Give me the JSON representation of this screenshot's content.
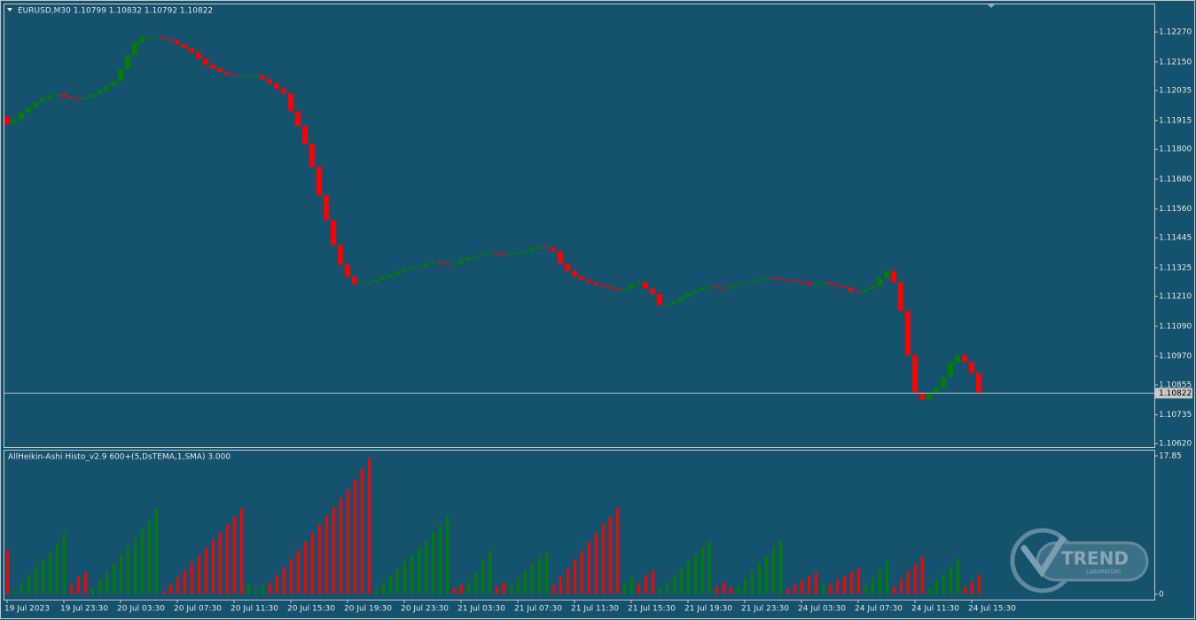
{
  "chart_data": [
    {
      "type": "candlestick",
      "title": "EURUSD,M30  1.10799 1.10832 1.10792 1.10822",
      "first_open": 1.1193,
      "close": [
        1.119,
        1.11921,
        1.11946,
        1.11968,
        1.11989,
        1.12003,
        1.12017,
        1.12021,
        1.1201,
        1.12003,
        1.12,
        1.12007,
        1.12021,
        1.12035,
        1.12053,
        1.12071,
        1.12121,
        1.12178,
        1.12227,
        1.12249,
        1.12249,
        1.12249,
        1.12242,
        1.12235,
        1.1222,
        1.12206,
        1.12188,
        1.12163,
        1.12138,
        1.12124,
        1.1211,
        1.12099,
        1.12096,
        1.12096,
        1.12096,
        1.12096,
        1.12081,
        1.12064,
        1.12042,
        1.12024,
        1.11953,
        1.11893,
        1.11822,
        1.11729,
        1.11615,
        1.11515,
        1.11416,
        1.11337,
        1.11288,
        1.11259,
        1.11263,
        1.11266,
        1.11277,
        1.11288,
        1.11298,
        1.11309,
        1.1132,
        1.11327,
        1.1133,
        1.11341,
        1.11348,
        1.11345,
        1.11341,
        1.11341,
        1.11355,
        1.11366,
        1.11373,
        1.1138,
        1.11384,
        1.1138,
        1.11377,
        1.1138,
        1.11387,
        1.11391,
        1.11401,
        1.11409,
        1.11405,
        1.11391,
        1.11341,
        1.11312,
        1.11291,
        1.11277,
        1.11266,
        1.11256,
        1.11248,
        1.11241,
        1.11234,
        1.11241,
        1.11259,
        1.11266,
        1.11241,
        1.1122,
        1.11174,
        1.11177,
        1.11188,
        1.11206,
        1.11223,
        1.11234,
        1.11245,
        1.11248,
        1.11245,
        1.11241,
        1.11252,
        1.11259,
        1.11263,
        1.1127,
        1.1128,
        1.11284,
        1.1128,
        1.11277,
        1.11273,
        1.1127,
        1.11266,
        1.11256,
        1.11259,
        1.11266,
        1.11259,
        1.11252,
        1.11245,
        1.11231,
        1.11227,
        1.11238,
        1.11252,
        1.11284,
        1.11312,
        1.11266,
        1.11152,
        1.10974,
        1.10825,
        1.10796,
        1.10821,
        1.10846,
        1.10885,
        1.10946,
        1.10974,
        1.10946,
        1.10903,
        1.10822
      ],
      "up_color": "#008000",
      "down_color": "#ff0000",
      "ylim": [
        1.10606,
        1.12384
      ],
      "yticks": [
        {
          "value": 1.1227,
          "label": "1.12270"
        },
        {
          "value": 1.1215,
          "label": "1.12150"
        },
        1.12035,
        1.11915,
        {
          "value": 1.118,
          "label": "1.11800"
        },
        {
          "value": 1.1168,
          "label": "1.11680"
        },
        {
          "value": 1.1156,
          "label": "1.11560"
        },
        1.11445,
        1.11325,
        {
          "value": 1.1121,
          "label": "1.11210"
        },
        {
          "value": 1.1109,
          "label": "1.11090"
        },
        {
          "value": 1.1097,
          "label": "1.10970"
        },
        1.10855,
        1.10735,
        {
          "value": 1.1062,
          "label": "1.10620"
        }
      ],
      "current_price": 1.10822,
      "x_labels": [
        "19 Jul 2023",
        "19 Jul 23:30",
        "20 Jul 03:30",
        "20 Jul 07:30",
        "20 Jul 11:30",
        "20 Jul 15:30",
        "20 Jul 19:30",
        "20 Jul 23:30",
        "21 Jul 03:30",
        "21 Jul 07:30",
        "21 Jul 11:30",
        "21 Jul 15:30",
        "21 Jul 19:30",
        "21 Jul 23:30",
        "24 Jul 03:30",
        "24 Jul 07:30",
        "24 Jul 11:30",
        "24 Jul 15:30"
      ]
    },
    {
      "type": "bar",
      "title": "AllHeikin-Ashi Histo_v2.9 600+(5,DsTEMA,1,SMA) 3.000",
      "ylim": [
        0,
        17.85
      ],
      "yticks": [
        17.85,
        0
      ],
      "runs": [
        {
          "color": "#ff0000",
          "values": [
            5.7
          ]
        },
        {
          "color": "#008000",
          "values": [
            0.5,
            1.5,
            2.5,
            3.5,
            4.5,
            5.5,
            6.5,
            7.9
          ]
        },
        {
          "color": "#ff0000",
          "values": [
            1.2,
            2.3,
            2.8
          ]
        },
        {
          "color": "#008000",
          "values": [
            0.8,
            1.8,
            2.9,
            4,
            5,
            6.2,
            7.3,
            8.4,
            9.6,
            11.1
          ]
        },
        {
          "color": "#ff0000",
          "values": [
            0.4,
            1.3,
            2.2,
            3.1,
            4.1,
            5,
            6,
            7,
            8,
            9,
            10,
            11.1
          ]
        },
        {
          "color": "#008000",
          "values": [
            1.4,
            0.6,
            1.2
          ]
        },
        {
          "color": "#ff0000",
          "values": [
            1.5,
            2.5,
            3.5,
            4.6,
            5.7,
            6.8,
            7.9,
            9,
            10.1,
            11.2,
            12.4,
            13.6,
            14.8,
            16.2,
            17.6
          ]
        },
        {
          "color": "#008000",
          "values": [
            0.6,
            1.5,
            2.4,
            3.3,
            4.2,
            5.1,
            6,
            7,
            8,
            9,
            10
          ]
        },
        {
          "color": "#ff0000",
          "values": [
            0.8,
            1.2
          ]
        },
        {
          "color": "#008000",
          "values": [
            1.5,
            2.8,
            4.3,
            5.6
          ]
        },
        {
          "color": "#ff0000",
          "values": [
            1,
            1.5
          ]
        },
        {
          "color": "#008000",
          "values": [
            1.2,
            2.1,
            3,
            3.9,
            4.7,
            5.4
          ]
        },
        {
          "color": "#ff0000",
          "values": [
            1.2,
            2.3,
            3.4,
            4.5,
            5.6,
            6.8,
            7.9,
            9,
            10,
            11.1
          ]
        },
        {
          "color": "#008000",
          "values": [
            1.5,
            2.2
          ]
        },
        {
          "color": "#ff0000",
          "values": [
            1.4,
            2.5,
            3.1
          ]
        },
        {
          "color": "#008000",
          "values": [
            0.8,
            1.6,
            2.5,
            3.4,
            4.3,
            5.2,
            6.1,
            6.9
          ]
        },
        {
          "color": "#ff0000",
          "values": [
            1,
            1.5,
            0.9
          ]
        },
        {
          "color": "#008000",
          "values": [
            1,
            2,
            3,
            4,
            5,
            6,
            6.9
          ]
        },
        {
          "color": "#ff0000",
          "values": [
            0.7,
            1.3,
            1.8,
            2.3,
            2.8
          ]
        },
        {
          "color": "#008000",
          "values": [
            1.2
          ]
        },
        {
          "color": "#ff0000",
          "values": [
            1.2,
            1.8,
            2.4,
            2.9,
            3.4
          ]
        },
        {
          "color": "#008000",
          "values": [
            1.2,
            2.1,
            3.2,
            4.4
          ]
        },
        {
          "color": "#ff0000",
          "values": [
            1,
            2,
            3,
            3.9,
            4.8
          ]
        },
        {
          "color": "#008000",
          "values": [
            0.8,
            1.7,
            2.6,
            3.6,
            4.7
          ]
        },
        {
          "color": "#ff0000",
          "values": [
            1,
            1.6,
            2.5
          ]
        }
      ]
    }
  ],
  "logo": {
    "title": "TREND",
    "subtitle": "LABORATORY"
  }
}
